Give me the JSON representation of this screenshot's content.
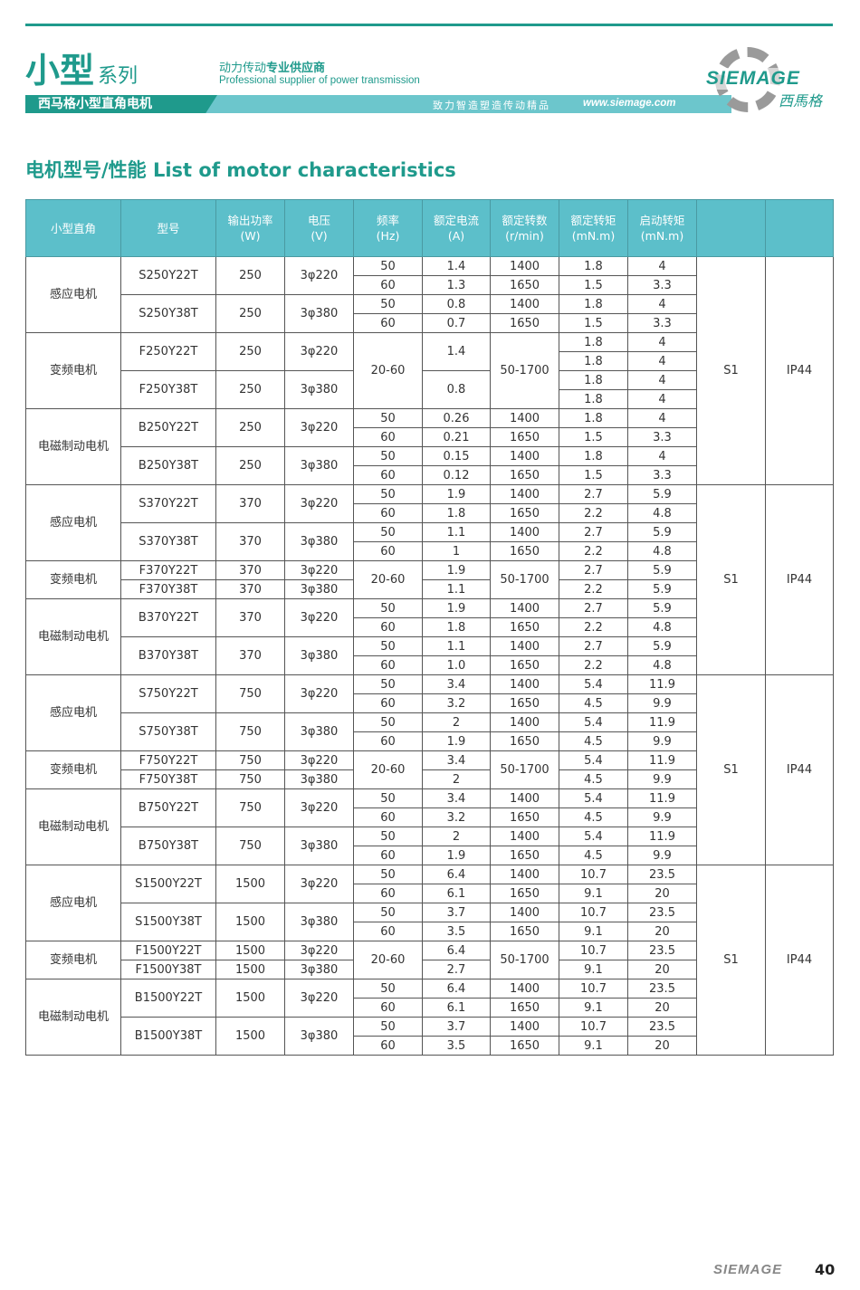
{
  "header": {
    "series_big": "小型",
    "series_small": "系列",
    "tagline_cn_a": "动力传动",
    "tagline_cn_b": "专业供应商",
    "tagline_en": "Professional supplier of power transmission",
    "banner_title": "西马格小型直角电机",
    "slogan": "致力智造塑造传动精品",
    "url": "www.siemage.com",
    "logo_text": "SIEMAGE",
    "logo_cn": "西馬格",
    "accent": "#1f9a8c",
    "band": "#6cc6cc"
  },
  "title": "电机型号/性能 List of motor characteristics",
  "table": {
    "headers": [
      [
        "小型直角",
        ""
      ],
      [
        "型号",
        ""
      ],
      [
        "输出功率",
        "(W)"
      ],
      [
        "电压",
        "(V)"
      ],
      [
        "频率",
        "(Hz)"
      ],
      [
        "额定电流",
        "(A)"
      ],
      [
        "额定转数",
        "(r/min)"
      ],
      [
        "额定转矩",
        "(mN.m)"
      ],
      [
        "启动转矩",
        "(mN.m)"
      ],
      [
        "",
        ""
      ],
      [
        "",
        ""
      ]
    ],
    "header_bg": "#5cbfca",
    "groups": [
      {
        "duty": "S1",
        "ip": "IP44",
        "types": [
          {
            "name": "感应电机",
            "models": [
              {
                "model": "S250Y22T",
                "power": "250",
                "voltage": "3φ220",
                "freq": [
                  "50",
                  "60"
                ],
                "current": [
                  "1.4",
                  "1.3"
                ],
                "speed": [
                  "1400",
                  "1650"
                ],
                "torque": [
                  "1.8",
                  "1.5"
                ],
                "start": [
                  "4",
                  "3.3"
                ]
              },
              {
                "model": "S250Y38T",
                "power": "250",
                "voltage": "3φ380",
                "freq": [
                  "50",
                  "60"
                ],
                "current": [
                  "0.8",
                  "0.7"
                ],
                "speed": [
                  "1400",
                  "1650"
                ],
                "torque": [
                  "1.8",
                  "1.5"
                ],
                "start": [
                  "4",
                  "3.3"
                ]
              }
            ]
          },
          {
            "name": "变频电机",
            "freq": "20-60",
            "speed": "50-1700",
            "models": [
              {
                "model": "F250Y22T",
                "power": "250",
                "voltage": "3φ220",
                "current": "1.4",
                "torque": [
                  "1.8",
                  "1.8"
                ],
                "start": [
                  "4",
                  "4"
                ]
              },
              {
                "model": "F250Y38T",
                "power": "250",
                "voltage": "3φ380",
                "current": "0.8",
                "torque": [
                  "1.8",
                  "1.8"
                ],
                "start": [
                  "4",
                  "4"
                ]
              }
            ]
          },
          {
            "name": "电磁制动电机",
            "models": [
              {
                "model": "B250Y22T",
                "power": "250",
                "voltage": "3φ220",
                "freq": [
                  "50",
                  "60"
                ],
                "current": [
                  "0.26",
                  "0.21"
                ],
                "speed": [
                  "1400",
                  "1650"
                ],
                "torque": [
                  "1.8",
                  "1.5"
                ],
                "start": [
                  "4",
                  "3.3"
                ]
              },
              {
                "model": "B250Y38T",
                "power": "250",
                "voltage": "3φ380",
                "freq": [
                  "50",
                  "60"
                ],
                "current": [
                  "0.15",
                  "0.12"
                ],
                "speed": [
                  "1400",
                  "1650"
                ],
                "torque": [
                  "1.8",
                  "1.5"
                ],
                "start": [
                  "4",
                  "3.3"
                ]
              }
            ]
          }
        ]
      },
      {
        "duty": "S1",
        "ip": "IP44",
        "types": [
          {
            "name": "感应电机",
            "models": [
              {
                "model": "S370Y22T",
                "power": "370",
                "voltage": "3φ220",
                "freq": [
                  "50",
                  "60"
                ],
                "current": [
                  "1.9",
                  "1.8"
                ],
                "speed": [
                  "1400",
                  "1650"
                ],
                "torque": [
                  "2.7",
                  "2.2"
                ],
                "start": [
                  "5.9",
                  "4.8"
                ]
              },
              {
                "model": "S370Y38T",
                "power": "370",
                "voltage": "3φ380",
                "freq": [
                  "50",
                  "60"
                ],
                "current": [
                  "1.1",
                  "1"
                ],
                "speed": [
                  "1400",
                  "1650"
                ],
                "torque": [
                  "2.7",
                  "2.2"
                ],
                "start": [
                  "5.9",
                  "4.8"
                ]
              }
            ]
          },
          {
            "name": "变频电机",
            "freq": "20-60",
            "speed": "50-1700",
            "models": [
              {
                "model": "F370Y22T",
                "power": "370",
                "voltage": "3φ220",
                "current": "1.9",
                "torque": "2.7",
                "start": "5.9"
              },
              {
                "model": "F370Y38T",
                "power": "370",
                "voltage": "3φ380",
                "current": "1.1",
                "torque": "2.2",
                "start": "5.9"
              }
            ]
          },
          {
            "name": "电磁制动电机",
            "models": [
              {
                "model": "B370Y22T",
                "power": "370",
                "voltage": "3φ220",
                "freq": [
                  "50",
                  "60"
                ],
                "current": [
                  "1.9",
                  "1.8"
                ],
                "speed": [
                  "1400",
                  "1650"
                ],
                "torque": [
                  "2.7",
                  "2.2"
                ],
                "start": [
                  "5.9",
                  "4.8"
                ]
              },
              {
                "model": "B370Y38T",
                "power": "370",
                "voltage": "3φ380",
                "freq": [
                  "50",
                  "60"
                ],
                "current": [
                  "1.1",
                  "1.0"
                ],
                "speed": [
                  "1400",
                  "1650"
                ],
                "torque": [
                  "2.7",
                  "2.2"
                ],
                "start": [
                  "5.9",
                  "4.8"
                ]
              }
            ]
          }
        ]
      },
      {
        "duty": "S1",
        "ip": "IP44",
        "types": [
          {
            "name": "感应电机",
            "models": [
              {
                "model": "S750Y22T",
                "power": "750",
                "voltage": "3φ220",
                "freq": [
                  "50",
                  "60"
                ],
                "current": [
                  "3.4",
                  "3.2"
                ],
                "speed": [
                  "1400",
                  "1650"
                ],
                "torque": [
                  "5.4",
                  "4.5"
                ],
                "start": [
                  "11.9",
                  "9.9"
                ]
              },
              {
                "model": "S750Y38T",
                "power": "750",
                "voltage": "3φ380",
                "freq": [
                  "50",
                  "60"
                ],
                "current": [
                  "2",
                  "1.9"
                ],
                "speed": [
                  "1400",
                  "1650"
                ],
                "torque": [
                  "5.4",
                  "4.5"
                ],
                "start": [
                  "11.9",
                  "9.9"
                ]
              }
            ]
          },
          {
            "name": "变频电机",
            "freq": "20-60",
            "speed": "50-1700",
            "models": [
              {
                "model": "F750Y22T",
                "power": "750",
                "voltage": "3φ220",
                "current": "3.4",
                "torque": "5.4",
                "start": "11.9"
              },
              {
                "model": "F750Y38T",
                "power": "750",
                "voltage": "3φ380",
                "current": "2",
                "torque": "4.5",
                "start": "9.9"
              }
            ]
          },
          {
            "name": "电磁制动电机",
            "models": [
              {
                "model": "B750Y22T",
                "power": "750",
                "voltage": "3φ220",
                "freq": [
                  "50",
                  "60"
                ],
                "current": [
                  "3.4",
                  "3.2"
                ],
                "speed": [
                  "1400",
                  "1650"
                ],
                "torque": [
                  "5.4",
                  "4.5"
                ],
                "start": [
                  "11.9",
                  "9.9"
                ]
              },
              {
                "model": "B750Y38T",
                "power": "750",
                "voltage": "3φ380",
                "freq": [
                  "50",
                  "60"
                ],
                "current": [
                  "2",
                  "1.9"
                ],
                "speed": [
                  "1400",
                  "1650"
                ],
                "torque": [
                  "5.4",
                  "4.5"
                ],
                "start": [
                  "11.9",
                  "9.9"
                ]
              }
            ]
          }
        ]
      },
      {
        "duty": "S1",
        "ip": "IP44",
        "types": [
          {
            "name": "感应电机",
            "models": [
              {
                "model": "S1500Y22T",
                "power": "1500",
                "voltage": "3φ220",
                "freq": [
                  "50",
                  "60"
                ],
                "current": [
                  "6.4",
                  "6.1"
                ],
                "speed": [
                  "1400",
                  "1650"
                ],
                "torque": [
                  "10.7",
                  "9.1"
                ],
                "start": [
                  "23.5",
                  "20"
                ]
              },
              {
                "model": "S1500Y38T",
                "power": "1500",
                "voltage": "3φ380",
                "freq": [
                  "50",
                  "60"
                ],
                "current": [
                  "3.7",
                  "3.5"
                ],
                "speed": [
                  "1400",
                  "1650"
                ],
                "torque": [
                  "10.7",
                  "9.1"
                ],
                "start": [
                  "23.5",
                  "20"
                ]
              }
            ]
          },
          {
            "name": "变频电机",
            "freq": "20-60",
            "speed": "50-1700",
            "models": [
              {
                "model": "F1500Y22T",
                "power": "1500",
                "voltage": "3φ220",
                "current": "6.4",
                "torque": "10.7",
                "start": "23.5"
              },
              {
                "model": "F1500Y38T",
                "power": "1500",
                "voltage": "3φ380",
                "current": "2.7",
                "torque": "9.1",
                "start": "20"
              }
            ]
          },
          {
            "name": "电磁制动电机",
            "models": [
              {
                "model": "B1500Y22T",
                "power": "1500",
                "voltage": "3φ220",
                "freq": [
                  "50",
                  "60"
                ],
                "current": [
                  "6.4",
                  "6.1"
                ],
                "speed": [
                  "1400",
                  "1650"
                ],
                "torque": [
                  "10.7",
                  "9.1"
                ],
                "start": [
                  "23.5",
                  "20"
                ]
              },
              {
                "model": "B1500Y38T",
                "power": "1500",
                "voltage": "3φ380",
                "freq": [
                  "50",
                  "60"
                ],
                "current": [
                  "3.7",
                  "3.5"
                ],
                "speed": [
                  "1400",
                  "1650"
                ],
                "torque": [
                  "10.7",
                  "9.1"
                ],
                "start": [
                  "23.5",
                  "20"
                ]
              }
            ]
          }
        ]
      }
    ]
  },
  "footer": {
    "brand": "SIEMAGE",
    "page": "40"
  }
}
